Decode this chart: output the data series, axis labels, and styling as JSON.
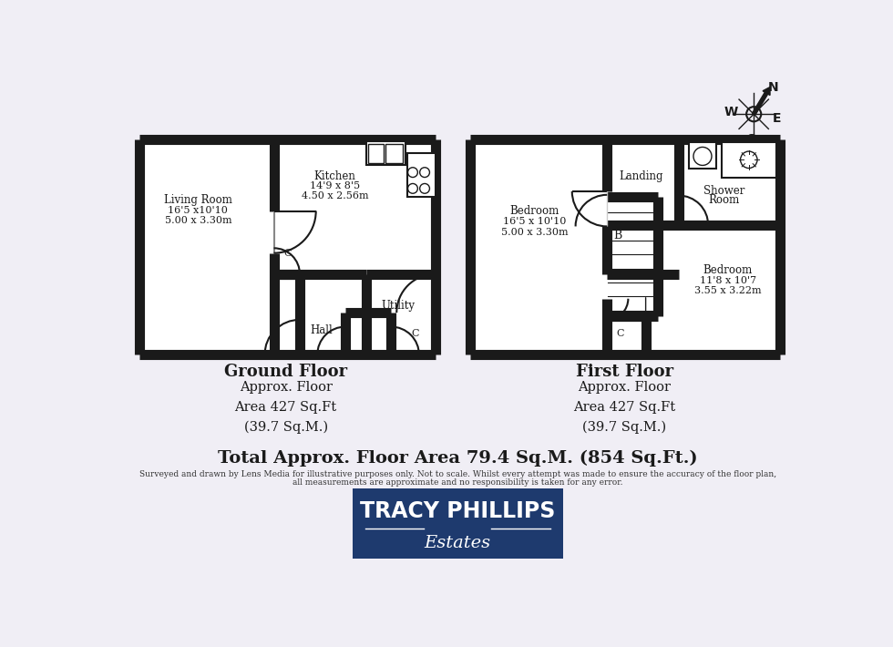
{
  "bg_color": "#f0eef5",
  "wall_color": "#1a1a1a",
  "wall_lw": 8,
  "thin_lw": 1.5,
  "ground_floor_label": "Ground Floor",
  "ground_floor_area": "Approx. Floor\nArea 427 Sq.Ft\n(39.7 Sq.M.)",
  "first_floor_label": "First Floor",
  "first_floor_area": "Approx. Floor\nArea 427 Sq.Ft\n(39.7 Sq.M.)",
  "total_area": "Total Approx. Floor Area 79.4 Sq.M. (854 Sq.Ft.)",
  "disclaimer_line1": "Surveyed and drawn by Lens Media for illustrative purposes only. Not to scale. Whilst every attempt was made to ensure the accuracy of the floor plan,",
  "disclaimer_line2": "all measurements are approximate and no responsibility is taken for any error.",
  "logo_bg": "#1e3a6e",
  "logo_text": "TRACY PHILLIPS",
  "logo_subtext": "Estates"
}
